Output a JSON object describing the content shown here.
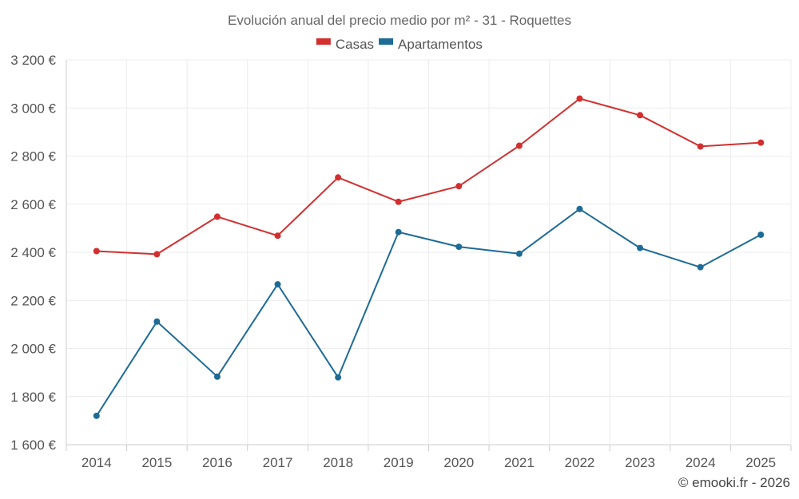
{
  "chart_data": {
    "type": "line",
    "title": "Evolución anual del precio medio por m² - 31 - Roquettes",
    "categories": [
      "2014",
      "2015",
      "2016",
      "2017",
      "2018",
      "2019",
      "2020",
      "2021",
      "2022",
      "2023",
      "2024",
      "2025"
    ],
    "series": [
      {
        "name": "Casas",
        "color": "#d32f2f",
        "values": [
          2405,
          2392,
          2548,
          2469,
          2711,
          2610,
          2675,
          2843,
          3039,
          2970,
          2840,
          2856
        ]
      },
      {
        "name": "Apartamentos",
        "color": "#1e6b96",
        "values": [
          1720,
          2112,
          1883,
          2267,
          1880,
          2484,
          2423,
          2394,
          2580,
          2418,
          2338,
          2473
        ]
      }
    ],
    "ylim": [
      1600,
      3200
    ],
    "yticks": [
      1600,
      1800,
      2000,
      2200,
      2400,
      2600,
      2800,
      3000,
      3200
    ],
    "ytick_labels": [
      "1 600 €",
      "1 800 €",
      "2 000 €",
      "2 200 €",
      "2 400 €",
      "2 600 €",
      "2 800 €",
      "3 000 €",
      "3 200 €"
    ],
    "grid": true,
    "legend_position": "top-center"
  },
  "footer": {
    "copyright": "© emooki.fr - 2026"
  }
}
